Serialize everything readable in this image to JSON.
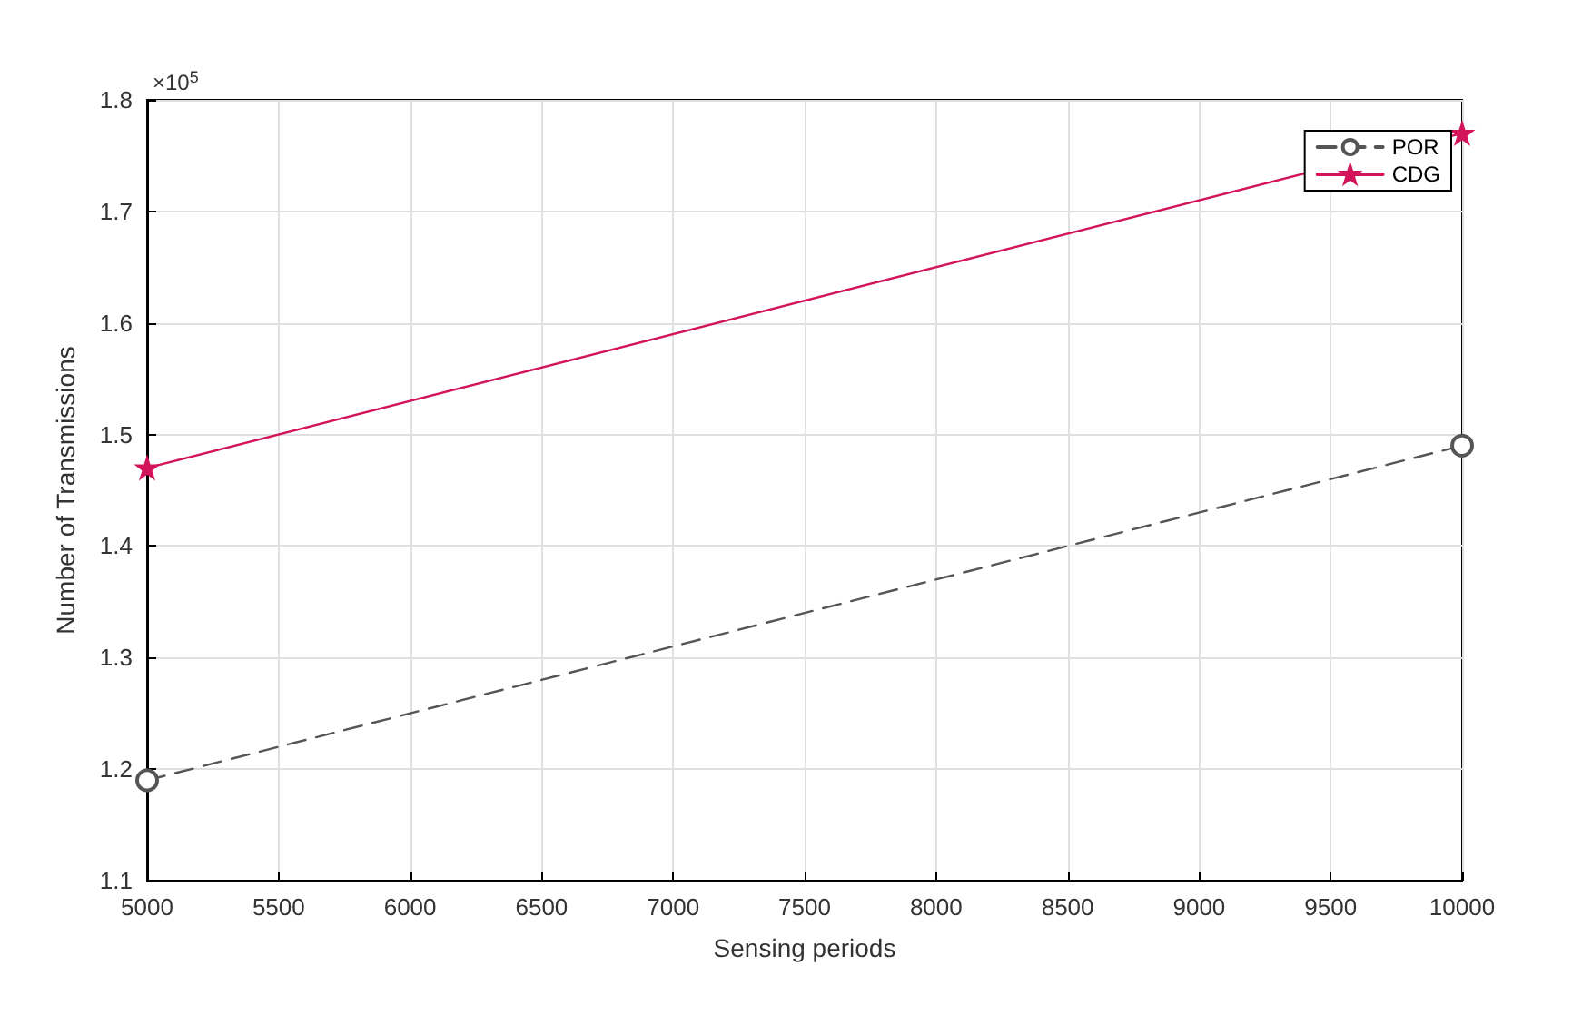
{
  "chart_data": {
    "type": "line",
    "xlabel": "Sensing periods",
    "ylabel": "Number of Transmissions",
    "annotations": [
      "×10$^{5}$"
    ],
    "x": [
      5000,
      10000
    ],
    "series": [
      {
        "name": "POR",
        "color": "#555555",
        "values": [
          1.19,
          1.49
        ],
        "marker": "circle",
        "line_style": "dashed"
      },
      {
        "name": "CDG",
        "color": "#d4145a",
        "values": [
          1.47,
          1.77
        ],
        "marker": "star",
        "line_style": "solid"
      }
    ],
    "xlim": [
      5000,
      10000
    ],
    "xticks": [
      5000,
      5500,
      6000,
      6500,
      7000,
      7500,
      8000,
      8500,
      9000,
      9500,
      10000
    ],
    "ylim": [
      1.1,
      1.8
    ],
    "yticks": [
      1.1,
      1.2,
      1.3,
      1.4,
      1.5,
      1.6,
      1.7,
      1.8
    ],
    "grid": true,
    "legend": "top right"
  }
}
